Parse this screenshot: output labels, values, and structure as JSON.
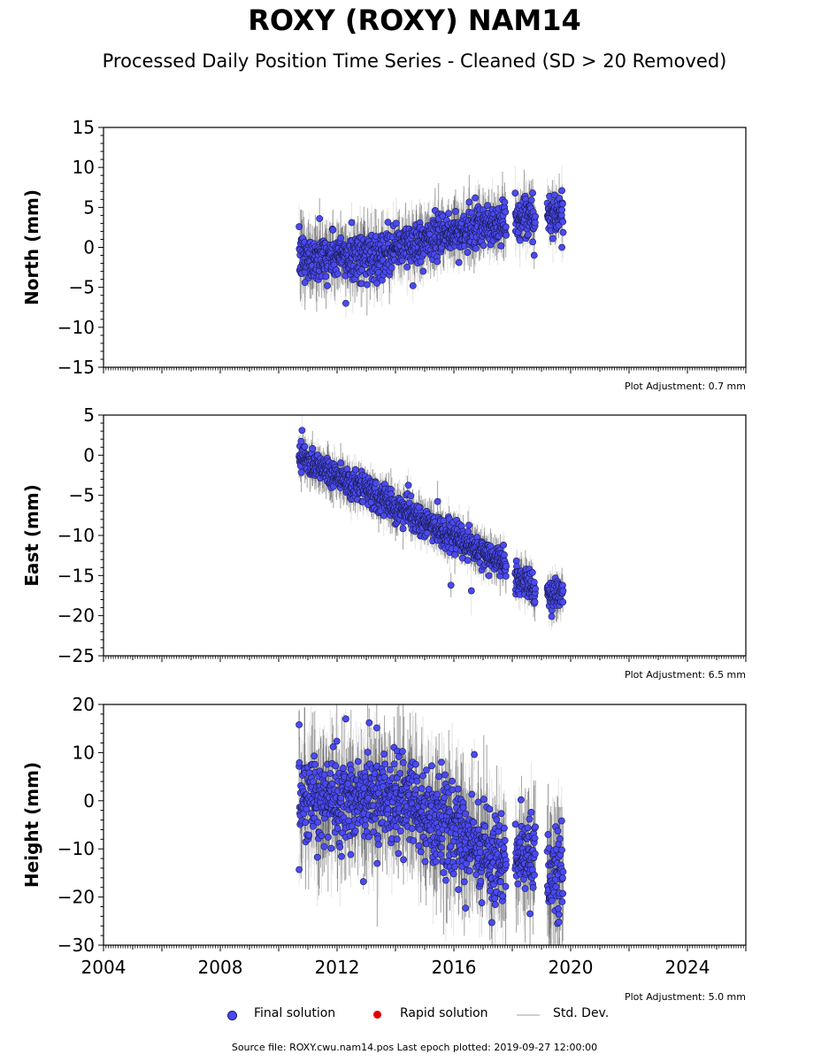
{
  "title": "ROXY (ROXY) NAM14",
  "subtitle": "Processed Daily Position Time Series - Cleaned (SD > 20 Removed)",
  "colors": {
    "final": "#4a4af0",
    "rapid": "#e00000",
    "stddev": "#cfcfcf",
    "stddev_dense": "#555555"
  },
  "legend": {
    "final_label": "Final solution",
    "rapid_label": "Rapid solution",
    "stddev_label": "Std. Dev."
  },
  "footer": "Source file: ROXY.cwu.nam14.pos  Last epoch plotted: 2019-09-27 12:00:00",
  "chart_data": [
    {
      "type": "scatter",
      "ylabel": "North (mm)",
      "ylim": [
        -15,
        15
      ],
      "yticks": [
        -15,
        -10,
        -5,
        0,
        5,
        10,
        15
      ],
      "xlim": [
        2004,
        2026
      ],
      "adjustment": "Plot Adjustment: 0.7 mm",
      "show_xtick_labels": false,
      "trend_segments": [
        {
          "x": [
            2010.7,
            2013.5
          ],
          "y": [
            -1.3,
            -1.0
          ],
          "spread": 1.4
        },
        {
          "x": [
            2013.5,
            2017.8
          ],
          "y": [
            -0.5,
            3.2
          ],
          "spread": 1.3
        },
        {
          "x": [
            2018.1,
            2018.8
          ],
          "y": [
            3.3,
            3.6
          ],
          "spread": 1.2
        },
        {
          "x": [
            2019.2,
            2019.75
          ],
          "y": [
            4.0,
            4.3
          ],
          "spread": 1.1
        }
      ],
      "outliers": [
        {
          "x": 2012.3,
          "y": -7.0
        },
        {
          "x": 2011.4,
          "y": 3.6
        },
        {
          "x": 2014.6,
          "y": -4.8
        },
        {
          "x": 2010.9,
          "y": -4.4
        },
        {
          "x": 2019.7,
          "y": 7.1
        },
        {
          "x": 2019.7,
          "y": 0.0
        },
        {
          "x": 2018.75,
          "y": -1.0
        },
        {
          "x": 2012.5,
          "y": 3.1
        },
        {
          "x": 2018.7,
          "y": 6.8
        }
      ]
    },
    {
      "type": "scatter",
      "ylabel": "East (mm)",
      "ylim": [
        -25,
        5
      ],
      "yticks": [
        -25,
        -20,
        -15,
        -10,
        -5,
        0,
        5
      ],
      "xlim": [
        2004,
        2026
      ],
      "adjustment": "Plot Adjustment: 6.5 mm",
      "show_xtick_labels": false,
      "trend_segments": [
        {
          "x": [
            2010.7,
            2017.8
          ],
          "y": [
            0.0,
            -13.8
          ],
          "spread": 0.9
        },
        {
          "x": [
            2018.1,
            2018.8
          ],
          "y": [
            -15.3,
            -16.5
          ],
          "spread": 0.9
        },
        {
          "x": [
            2019.2,
            2019.75
          ],
          "y": [
            -17.2,
            -17.4
          ],
          "spread": 0.9
        }
      ],
      "outliers": [
        {
          "x": 2010.8,
          "y": 3.1
        },
        {
          "x": 2015.9,
          "y": -16.2
        },
        {
          "x": 2016.6,
          "y": -16.9
        },
        {
          "x": 2019.35,
          "y": -20.1
        },
        {
          "x": 2017.7,
          "y": -11.2
        },
        {
          "x": 2014.8,
          "y": -6.5
        }
      ]
    },
    {
      "type": "scatter",
      "ylabel": "Height (mm)",
      "ylim": [
        -30,
        20
      ],
      "yticks": [
        -30,
        -20,
        -10,
        0,
        10,
        20
      ],
      "xlim": [
        2004,
        2026
      ],
      "xticks": [
        2004,
        2008,
        2012,
        2016,
        2020,
        2024
      ],
      "adjustment": "Plot Adjustment: 5.0 mm",
      "show_xtick_labels": true,
      "trend_segments": [
        {
          "x": [
            2010.7,
            2014.5
          ],
          "y": [
            0.5,
            0.5
          ],
          "spread": 4.5
        },
        {
          "x": [
            2014.5,
            2017.8
          ],
          "y": [
            -1.0,
            -13.0
          ],
          "spread": 4.5
        },
        {
          "x": [
            2018.1,
            2018.8
          ],
          "y": [
            -12.0,
            -12.0
          ],
          "spread": 4.0
        },
        {
          "x": [
            2019.2,
            2019.75
          ],
          "y": [
            -15.0,
            -15.0
          ],
          "spread": 5.0
        }
      ],
      "outliers": [
        {
          "x": 2012.3,
          "y": 17.0
        },
        {
          "x": 2013.1,
          "y": 16.2
        },
        {
          "x": 2010.7,
          "y": 15.8
        },
        {
          "x": 2010.7,
          "y": -14.3
        },
        {
          "x": 2012.9,
          "y": -16.8
        },
        {
          "x": 2016.7,
          "y": 9.6
        },
        {
          "x": 2016.4,
          "y": -22.3
        },
        {
          "x": 2018.3,
          "y": 0.2
        },
        {
          "x": 2017.3,
          "y": -25.3
        },
        {
          "x": 2019.6,
          "y": -25.2
        }
      ]
    }
  ]
}
